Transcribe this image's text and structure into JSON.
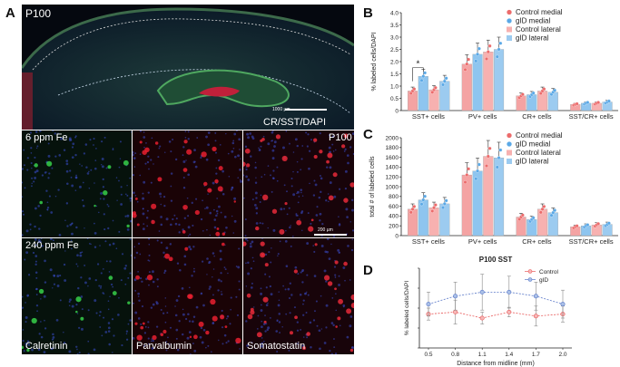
{
  "panels": {
    "A": "A",
    "B": "B",
    "C": "C",
    "D": "D"
  },
  "panelA": {
    "top_age": "P100",
    "top_scalebar": "1000 µm",
    "top_stain": "CR/SST/DAPI",
    "row1_label": "6 ppm Fe",
    "row1_age": "P100",
    "row2_label": "240 ppm Fe",
    "grid_scalebar": "200 µm",
    "col_labels": [
      "Calretinin",
      "Parvalbumin",
      "Somatostatin"
    ]
  },
  "colors": {
    "control_medial": "#f4a3a3",
    "gid_medial": "#8ec5ef",
    "control_lateral": "#f7b1b0",
    "gid_lateral": "#9ccbf0",
    "control_line": "#e85a5a",
    "gid_line": "#5a78c8"
  },
  "chart_data": [
    {
      "type": "bar",
      "panel": "B",
      "ylabel": "% labeled cells/DAPI",
      "ylim": [
        0,
        4
      ],
      "yticks": [
        "0",
        "0.5",
        "1.0",
        "1.5",
        "2.0",
        "2.5",
        "3.0",
        "3.5",
        "4.0"
      ],
      "categories": [
        "SST+ cells",
        "PV+ cells",
        "CR+ cells",
        "SST/CR+ cells"
      ],
      "series": [
        {
          "name": "Control medial",
          "values": [
            0.8,
            1.9,
            0.6,
            0.25
          ]
        },
        {
          "name": "gID medial",
          "values": [
            1.4,
            2.3,
            0.65,
            0.3
          ]
        },
        {
          "name": "Control lateral",
          "values": [
            0.85,
            2.4,
            0.8,
            0.3
          ]
        },
        {
          "name": "gID lateral",
          "values": [
            1.2,
            2.5,
            0.75,
            0.35
          ]
        }
      ],
      "annotation": "*",
      "legend": "top-right"
    },
    {
      "type": "bar",
      "panel": "C",
      "ylabel": "total # of labeled cells",
      "ylim": [
        0,
        2000
      ],
      "yticks": [
        "0",
        "200",
        "400",
        "600",
        "800",
        "1000",
        "1200",
        "1400",
        "1600",
        "1800",
        "2000"
      ],
      "categories": [
        "SST+ cells",
        "PV+ cells",
        "CR+ cells",
        "SST/CR+ cells"
      ],
      "series": [
        {
          "name": "Control medial",
          "values": [
            540,
            1240,
            380,
            180
          ]
        },
        {
          "name": "gID medial",
          "values": [
            730,
            1320,
            330,
            200
          ]
        },
        {
          "name": "Control lateral",
          "values": [
            570,
            1620,
            540,
            220
          ]
        },
        {
          "name": "gID lateral",
          "values": [
            650,
            1590,
            470,
            230
          ]
        }
      ],
      "legend": "top-right"
    },
    {
      "type": "line",
      "panel": "D",
      "title": "P100 SST",
      "xlabel": "Distance from midline (mm)",
      "ylabel": "% labeled cells/DAPI",
      "x": [
        0.5,
        0.8,
        1.1,
        1.4,
        1.7,
        2.0
      ],
      "xticks": [
        "0.5",
        "0.8",
        "1.1",
        "1.4",
        "1.7",
        "2.0"
      ],
      "ylim": [
        0,
        2
      ],
      "series": [
        {
          "name": "Control",
          "values": [
            0.85,
            0.9,
            0.75,
            0.9,
            0.8,
            0.85
          ],
          "err": [
            0.15,
            0.3,
            0.15,
            0.12,
            0.25,
            0.2
          ]
        },
        {
          "name": "gID",
          "values": [
            1.1,
            1.3,
            1.4,
            1.4,
            1.3,
            1.1
          ],
          "err": [
            0.3,
            0.35,
            0.45,
            0.4,
            0.35,
            0.35
          ]
        }
      ],
      "legend": "top-right"
    }
  ]
}
